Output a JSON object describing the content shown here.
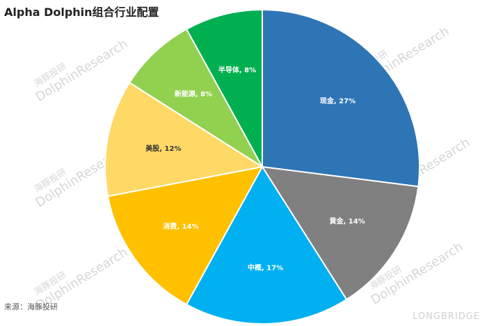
{
  "chart_data": {
    "type": "pie",
    "title": "Alpha Dolphin组合行业配置",
    "source": "来源：海豚投研",
    "categories": [
      "现金",
      "黄金",
      "中概",
      "消费",
      "美股",
      "新能源",
      "半导体"
    ],
    "values": [
      27,
      14,
      17,
      14,
      12,
      8,
      8
    ],
    "labels": [
      "现金, 27%",
      "黄金, 14%",
      "中概, 17%",
      "消费, 14%",
      "美股, 12%",
      "新能源, 8%",
      "半导体, 8%"
    ],
    "colors": [
      "#2e75b6",
      "#808080",
      "#00b0f0",
      "#ffc000",
      "#ffd966",
      "#92d050",
      "#00b050"
    ],
    "label_dark": [
      false,
      false,
      false,
      false,
      true,
      false,
      false
    ],
    "start": "12 o'clock",
    "direction": "clockwise"
  },
  "watermarks": {
    "cn": "海豚投研",
    "en": "DolphinResearch",
    "brand": "LONGBRIDGE"
  }
}
